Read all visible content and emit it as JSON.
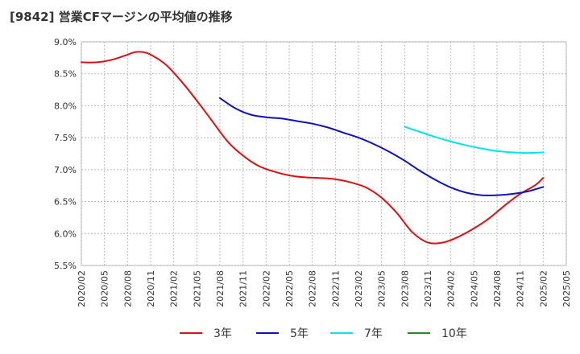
{
  "chart_data": {
    "type": "line",
    "title": "[9842]  営業CFマージンの平均値の推移",
    "xlabel": "",
    "ylabel": "",
    "ylim": [
      5.5,
      9.0
    ],
    "yticks": [
      5.5,
      6.0,
      6.5,
      7.0,
      7.5,
      8.0,
      8.5,
      9.0
    ],
    "ytick_labels": [
      "5.5%",
      "6.0%",
      "6.5%",
      "7.0%",
      "7.5%",
      "8.0%",
      "8.5%",
      "9.0%"
    ],
    "x_tick_labels": [
      "2020/02",
      "2020/05",
      "2020/08",
      "2020/11",
      "2021/02",
      "2021/05",
      "2021/08",
      "2021/11",
      "2022/02",
      "2022/05",
      "2022/08",
      "2022/11",
      "2023/02",
      "2023/05",
      "2023/08",
      "2023/11",
      "2024/02",
      "2024/05",
      "2024/08",
      "2024/11",
      "2025/02",
      "2025/05"
    ],
    "grid": true,
    "legend_position": "bottom",
    "series": [
      {
        "name": "3年",
        "color": "#dd1111",
        "points": [
          [
            "2020/02",
            8.68
          ],
          [
            "2020/04",
            8.68
          ],
          [
            "2020/06",
            8.72
          ],
          [
            "2020/08",
            8.8
          ],
          [
            "2020/09",
            8.84
          ],
          [
            "2020/10",
            8.84
          ],
          [
            "2020/11",
            8.8
          ],
          [
            "2021/01",
            8.64
          ],
          [
            "2021/03",
            8.38
          ],
          [
            "2021/05",
            8.08
          ],
          [
            "2021/07",
            7.76
          ],
          [
            "2021/09",
            7.44
          ],
          [
            "2021/11",
            7.22
          ],
          [
            "2022/01",
            7.06
          ],
          [
            "2022/03",
            6.97
          ],
          [
            "2022/05",
            6.91
          ],
          [
            "2022/07",
            6.88
          ],
          [
            "2022/09",
            6.87
          ],
          [
            "2022/11",
            6.85
          ],
          [
            "2023/01",
            6.8
          ],
          [
            "2023/03",
            6.72
          ],
          [
            "2023/05",
            6.56
          ],
          [
            "2023/07",
            6.32
          ],
          [
            "2023/09",
            6.02
          ],
          [
            "2023/11",
            5.86
          ],
          [
            "2024/01",
            5.86
          ],
          [
            "2024/03",
            5.95
          ],
          [
            "2024/05",
            6.08
          ],
          [
            "2024/07",
            6.24
          ],
          [
            "2024/09",
            6.44
          ],
          [
            "2024/11",
            6.62
          ],
          [
            "2025/01",
            6.76
          ],
          [
            "2025/02",
            6.87
          ]
        ]
      },
      {
        "name": "5年",
        "color": "#1111bb",
        "points": [
          [
            "2021/08",
            8.12
          ],
          [
            "2021/10",
            7.96
          ],
          [
            "2021/12",
            7.86
          ],
          [
            "2022/02",
            7.82
          ],
          [
            "2022/04",
            7.8
          ],
          [
            "2022/06",
            7.76
          ],
          [
            "2022/08",
            7.72
          ],
          [
            "2022/10",
            7.66
          ],
          [
            "2022/12",
            7.58
          ],
          [
            "2023/02",
            7.5
          ],
          [
            "2023/04",
            7.4
          ],
          [
            "2023/06",
            7.28
          ],
          [
            "2023/08",
            7.14
          ],
          [
            "2023/10",
            6.98
          ],
          [
            "2023/12",
            6.84
          ],
          [
            "2024/02",
            6.72
          ],
          [
            "2024/04",
            6.64
          ],
          [
            "2024/06",
            6.6
          ],
          [
            "2024/08",
            6.6
          ],
          [
            "2024/10",
            6.62
          ],
          [
            "2024/12",
            6.66
          ],
          [
            "2025/02",
            6.73
          ]
        ]
      },
      {
        "name": "7年",
        "color": "#00e5ee",
        "points": [
          [
            "2023/08",
            7.67
          ],
          [
            "2023/10",
            7.59
          ],
          [
            "2023/12",
            7.51
          ],
          [
            "2024/02",
            7.44
          ],
          [
            "2024/04",
            7.38
          ],
          [
            "2024/06",
            7.33
          ],
          [
            "2024/08",
            7.29
          ],
          [
            "2024/10",
            7.27
          ],
          [
            "2024/12",
            7.26
          ],
          [
            "2025/02",
            7.27
          ]
        ]
      },
      {
        "name": "10年",
        "color": "#228b22",
        "points": []
      }
    ]
  }
}
